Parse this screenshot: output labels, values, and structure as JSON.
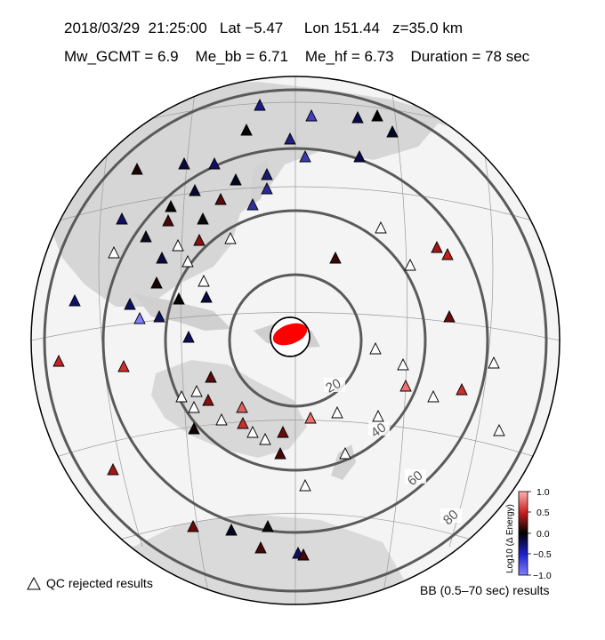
{
  "header": {
    "line1": "2018/03/29  21:25:00   Lat −5.47     Lon 151.44   z=35.0 km",
    "line2": "Mw_GCMT = 6.9    Me_bb = 6.71    Me_hf = 6.73    Duration = 78 sec"
  },
  "map": {
    "projection": "azimuthal-equidistant",
    "epicenter_lat": -5.47,
    "epicenter_lon": 151.44,
    "distance_ring_labels": [
      "20",
      "40",
      "60",
      "80"
    ],
    "beachball_color": "#ff0000"
  },
  "colorbar": {
    "title": "Log10 (Δ Energy)",
    "ticks": [
      "1.0",
      "0.5",
      "0.0",
      "−0.5",
      "−1.0"
    ],
    "min_color": "#8080ff",
    "mid_color": "#000000",
    "max_color": "#ffb0b0"
  },
  "legend": {
    "qc_rejected": "QC rejected results",
    "bb_results": "BB (0.5–70 sec) results"
  }
}
